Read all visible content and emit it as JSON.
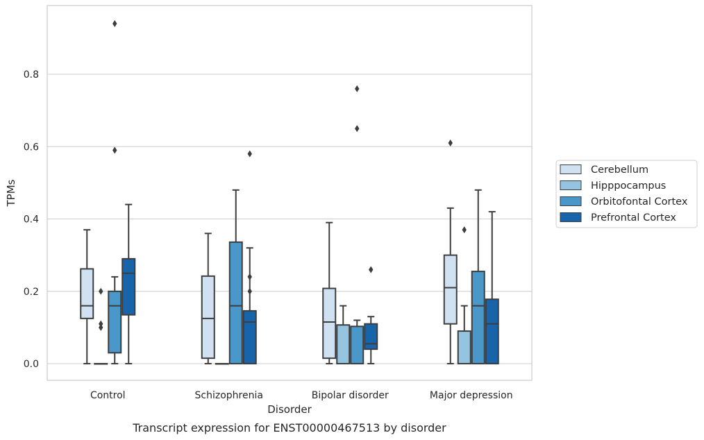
{
  "caption": "Transcript expression for ENST00000467513 by disorder",
  "chart_data": {
    "type": "box",
    "title": "",
    "xlabel": "Disorder",
    "ylabel": "TPMs",
    "categories": [
      "Control",
      "Schizophrenia",
      "Bipolar disorder",
      "Major depression"
    ],
    "ylim": [
      -0.045,
      0.99
    ],
    "yticks": [
      0.0,
      0.2,
      0.4,
      0.6,
      0.8
    ],
    "ytick_labels": [
      "0.0",
      "0.2",
      "0.4",
      "0.6",
      "0.8"
    ],
    "grid": "horizontal",
    "legend_position": "right",
    "series": [
      {
        "name": "Cerebellum",
        "color": "#d0e1f2",
        "boxes": [
          {
            "whislo": 0.0,
            "q1": 0.125,
            "med": 0.16,
            "q3": 0.262,
            "whishi": 0.37,
            "fliers": []
          },
          {
            "whislo": 0.0,
            "q1": 0.015,
            "med": 0.125,
            "q3": 0.242,
            "whishi": 0.36,
            "fliers": []
          },
          {
            "whislo": 0.0,
            "q1": 0.015,
            "med": 0.115,
            "q3": 0.208,
            "whishi": 0.39,
            "fliers": []
          },
          {
            "whislo": 0.0,
            "q1": 0.11,
            "med": 0.21,
            "q3": 0.3,
            "whishi": 0.43,
            "fliers": [
              0.61
            ]
          }
        ]
      },
      {
        "name": "Hipppocampus",
        "color": "#94c4df",
        "boxes": [
          {
            "whislo": 0.0,
            "q1": 0.0,
            "med": 0.0,
            "q3": 0.0,
            "whishi": 0.0,
            "fliers": [
              0.1,
              0.11,
              0.2
            ]
          },
          {
            "whislo": 0.0,
            "q1": 0.0,
            "med": 0.0,
            "q3": 0.0,
            "whishi": 0.0,
            "fliers": []
          },
          {
            "whislo": 0.0,
            "q1": 0.0,
            "med": 0.0,
            "q3": 0.107,
            "whishi": 0.16,
            "fliers": []
          },
          {
            "whislo": 0.0,
            "q1": 0.0,
            "med": 0.0,
            "q3": 0.09,
            "whishi": 0.16,
            "fliers": [
              0.37
            ]
          }
        ]
      },
      {
        "name": "Orbitofontal Cortex",
        "color": "#4a98c9",
        "boxes": [
          {
            "whislo": 0.0,
            "q1": 0.03,
            "med": 0.16,
            "q3": 0.2,
            "whishi": 0.24,
            "fliers": [
              0.59,
              0.94
            ]
          },
          {
            "whislo": 0.0,
            "q1": 0.0,
            "med": 0.16,
            "q3": 0.336,
            "whishi": 0.48,
            "fliers": []
          },
          {
            "whislo": 0.0,
            "q1": 0.0,
            "med": 0.0,
            "q3": 0.103,
            "whishi": 0.12,
            "fliers": [
              0.65,
              0.76
            ]
          },
          {
            "whislo": 0.0,
            "q1": 0.0,
            "med": 0.16,
            "q3": 0.255,
            "whishi": 0.48,
            "fliers": []
          }
        ]
      },
      {
        "name": "Prefrontal Cortex",
        "color": "#1764ab",
        "boxes": [
          {
            "whislo": 0.0,
            "q1": 0.135,
            "med": 0.25,
            "q3": 0.29,
            "whishi": 0.44,
            "fliers": []
          },
          {
            "whislo": 0.0,
            "q1": 0.0,
            "med": 0.115,
            "q3": 0.146,
            "whishi": 0.32,
            "fliers": [
              0.2,
              0.24,
              0.58
            ]
          },
          {
            "whislo": 0.0,
            "q1": 0.04,
            "med": 0.055,
            "q3": 0.11,
            "whishi": 0.13,
            "fliers": [
              0.26
            ]
          },
          {
            "whislo": 0.0,
            "q1": 0.0,
            "med": 0.11,
            "q3": 0.178,
            "whishi": 0.42,
            "fliers": []
          }
        ]
      }
    ]
  }
}
